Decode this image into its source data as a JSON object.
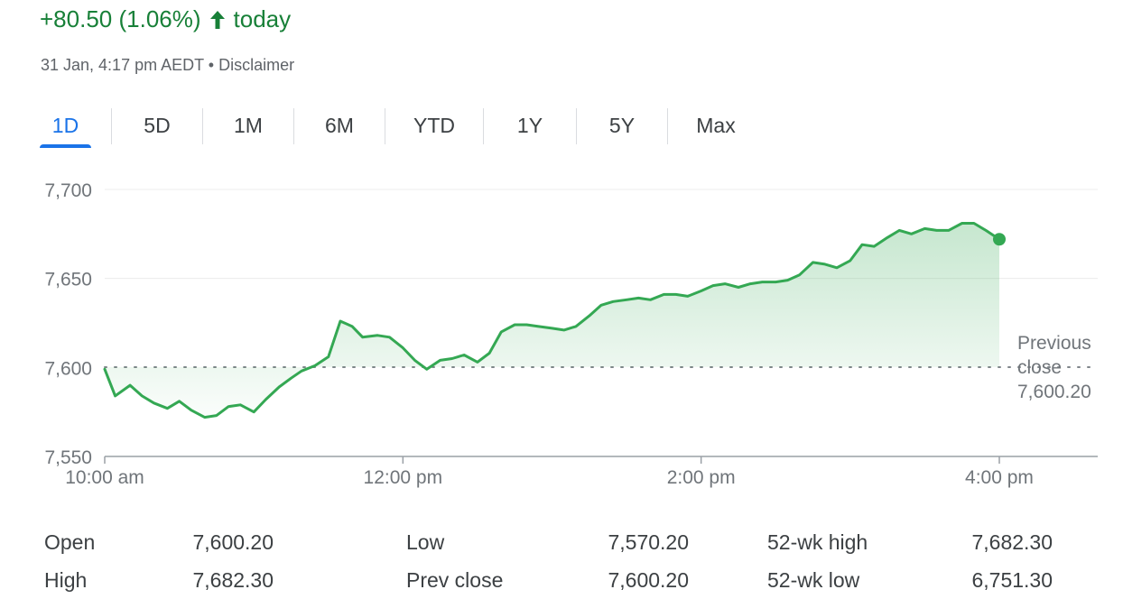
{
  "header": {
    "change_text": "+80.50 (1.06%)",
    "change_suffix": "today",
    "change_color": "#188038",
    "arrow_icon": "arrow-up-icon",
    "timestamp": "31 Jan, 4:17 pm AEDT",
    "separator": "•",
    "disclaimer": "Disclaimer"
  },
  "tabs": [
    {
      "label": "1D",
      "active": true
    },
    {
      "label": "5D"
    },
    {
      "label": "1M"
    },
    {
      "label": "6M"
    },
    {
      "label": "YTD"
    },
    {
      "label": "1Y"
    },
    {
      "label": "5Y"
    },
    {
      "label": "Max"
    }
  ],
  "chart_data": {
    "type": "area",
    "x_unit": "hours since 10:00 am",
    "x_ticks": [
      {
        "value": 0,
        "label": "10:00 am"
      },
      {
        "value": 2,
        "label": "12:00 pm"
      },
      {
        "value": 4,
        "label": "2:00 pm"
      },
      {
        "value": 6,
        "label": "4:00 pm"
      }
    ],
    "ylim": [
      7550,
      7700
    ],
    "y_ticks": [
      {
        "value": 7700,
        "label": "7,700"
      },
      {
        "value": 7650,
        "label": "7,650"
      },
      {
        "value": 7600,
        "label": "7,600"
      },
      {
        "value": 7550,
        "label": "7,550"
      }
    ],
    "grid": true,
    "line_color": "#34a853",
    "reference_line": {
      "value": 7600.2,
      "label_lines": [
        "Previous",
        "close",
        "7,600.20"
      ]
    },
    "series": [
      {
        "x": [
          0.0,
          0.07,
          0.17,
          0.25,
          0.33,
          0.42,
          0.5,
          0.58,
          0.67,
          0.75,
          0.83,
          0.91,
          1.0,
          1.08,
          1.17,
          1.25,
          1.32,
          1.41,
          1.5,
          1.58,
          1.66,
          1.73,
          1.83,
          1.91,
          2.0,
          2.08,
          2.16,
          2.25,
          2.33,
          2.41,
          2.5,
          2.58,
          2.66,
          2.75,
          2.83,
          2.91,
          3.0,
          3.08,
          3.16,
          3.25,
          3.33,
          3.41,
          3.5,
          3.58,
          3.66,
          3.75,
          3.83,
          3.91,
          4.0,
          4.08,
          4.16,
          4.25,
          4.33,
          4.41,
          4.5,
          4.58,
          4.66,
          4.75,
          4.83,
          4.91,
          5.0,
          5.08,
          5.16,
          5.25,
          5.33,
          5.41,
          5.5,
          5.58,
          5.66,
          5.75,
          5.83,
          5.91,
          6.0
        ],
        "y": [
          7599,
          7584,
          7590,
          7584,
          7580,
          7577,
          7581,
          7576,
          7572,
          7573,
          7578,
          7579,
          7575,
          7582,
          7589,
          7594,
          7598,
          7601,
          7606,
          7626,
          7623,
          7617,
          7618,
          7617,
          7611,
          7604,
          7599,
          7604,
          7605,
          7607,
          7603,
          7608,
          7620,
          7624,
          7624,
          7623,
          7622,
          7621,
          7623,
          7629,
          7635,
          7637,
          7638,
          7639,
          7638,
          7641,
          7641,
          7640,
          7643,
          7646,
          7647,
          7645,
          7647,
          7648,
          7648,
          7649,
          7652,
          7659,
          7658,
          7656,
          7660,
          7669,
          7668,
          7673,
          7677,
          7675,
          7678,
          7677,
          7677,
          7681,
          7681,
          7677,
          7672
        ]
      }
    ]
  },
  "stats": [
    {
      "label": "Open",
      "value": "7,600.20"
    },
    {
      "label": "High",
      "value": "7,682.30"
    },
    {
      "label": "Low",
      "value": "7,570.20"
    },
    {
      "label": "Prev close",
      "value": "7,600.20"
    },
    {
      "label": "52-wk high",
      "value": "7,682.30"
    },
    {
      "label": "52-wk low",
      "value": "6,751.30"
    }
  ]
}
